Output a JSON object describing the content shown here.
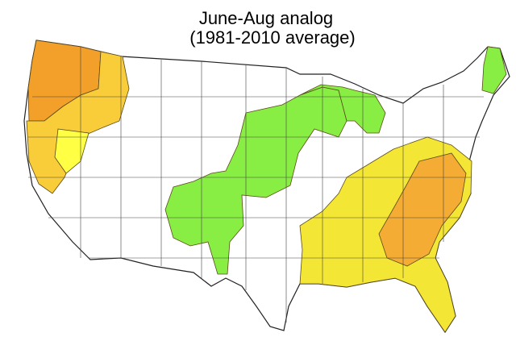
{
  "title": "June-Aug analog",
  "subtitle": "(1981-2010 average)"
}
